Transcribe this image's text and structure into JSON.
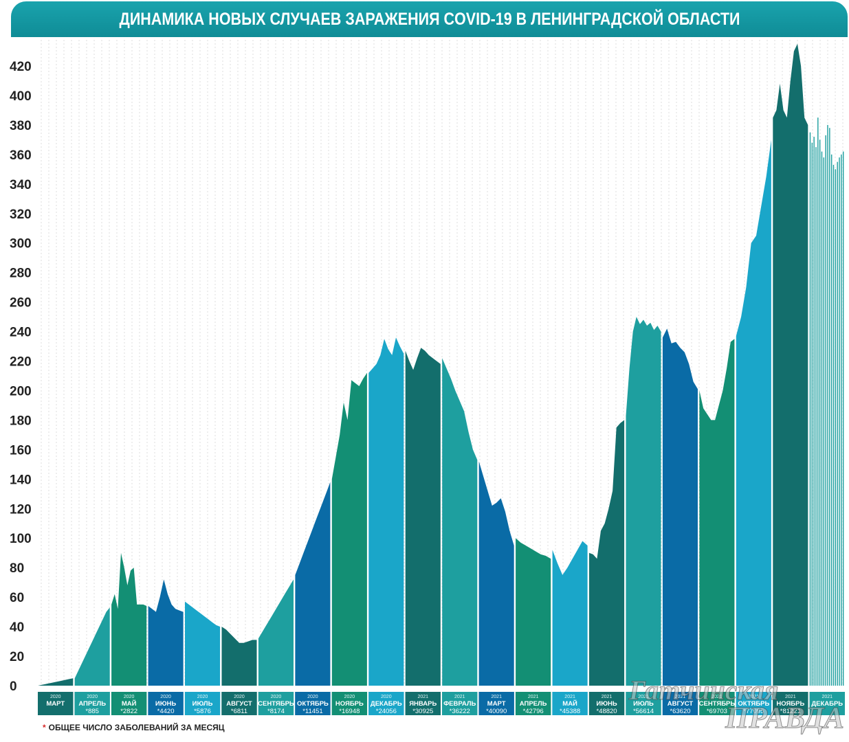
{
  "title": "ДИНАМИКА НОВЫХ СЛУЧАЕВ ЗАРАЖЕНИЯ COVID-19 В ЛЕНИНГРАДСКОЙ ОБЛАСТИ",
  "footnote": {
    "star": "*",
    "text": "ОБЩЕЕ ЧИСЛО ЗАБОЛЕВАНИЙ ЗА МЕСЯЦ"
  },
  "watermark": {
    "line1": "Гатчинская",
    "line2": "ПРАВДА"
  },
  "colors": {
    "dark_teal": "#136e6c",
    "medium_teal": "#1e9f9f",
    "green": "#138f74",
    "dark_blue": "#0a6ba6",
    "light_blue": "#1aa6c9",
    "banner": "#1aa3ad",
    "grid": "#c9c9c9"
  },
  "chart_data": {
    "type": "area",
    "title": "ДИНАМИКА НОВЫХ СЛУЧАЕВ ЗАРАЖЕНИЯ COVID-19 В ЛЕНИНГРАДСКОЙ ОБЛАСТИ",
    "xlabel": "",
    "ylabel": "",
    "ylim": [
      0,
      440
    ],
    "yticks": [
      0,
      20,
      40,
      60,
      80,
      100,
      120,
      140,
      160,
      180,
      200,
      220,
      240,
      260,
      280,
      300,
      320,
      340,
      360,
      380,
      400,
      420
    ],
    "grid": "vertical",
    "legend": "none",
    "months": [
      {
        "year": "2020",
        "name": "МАРТ",
        "total": "",
        "color": "#136e6c",
        "values": [
          0,
          0.5,
          1,
          1.5,
          2,
          2.5,
          3,
          3.5,
          4,
          4.5,
          5
        ]
      },
      {
        "year": "2020",
        "name": "АПРЕЛЬ",
        "total": "*885",
        "color": "#1e9f9f",
        "values": [
          5,
          10,
          15,
          20,
          25,
          30,
          35,
          40,
          45,
          50,
          53
        ]
      },
      {
        "year": "2020",
        "name": "МАЙ",
        "total": "*2822",
        "color": "#138f74",
        "values": [
          55,
          62,
          52,
          90,
          80,
          68,
          78,
          80,
          55,
          55,
          55,
          54
        ]
      },
      {
        "year": "2020",
        "name": "ИЮНЬ",
        "total": "*4420",
        "color": "#0a6ba6",
        "values": [
          54,
          52,
          50,
          60,
          72,
          62,
          55,
          52,
          51,
          50
        ]
      },
      {
        "year": "2020",
        "name": "ИЮЛЬ",
        "total": "*5876",
        "color": "#1aa6c9",
        "values": [
          57,
          55,
          53,
          51,
          49,
          47,
          45,
          43,
          41,
          40
        ]
      },
      {
        "year": "2020",
        "name": "АВГУСТ",
        "total": "*6811",
        "color": "#136e6c",
        "values": [
          40,
          38,
          35,
          32,
          29,
          29,
          30,
          31,
          31
        ]
      },
      {
        "year": "2020",
        "name": "СЕНТЯБРЬ",
        "total": "*8174",
        "color": "#1e9f9f",
        "values": [
          32,
          37,
          42,
          47,
          52,
          57,
          62,
          67,
          72
        ]
      },
      {
        "year": "2020",
        "name": "ОКТЯБРЬ",
        "total": "*11451",
        "color": "#0a6ba6",
        "values": [
          75,
          82,
          89,
          96,
          103,
          110,
          117,
          124,
          131,
          138
        ]
      },
      {
        "year": "2020",
        "name": "НОЯБРЬ",
        "total": "*16948",
        "color": "#138f74",
        "values": [
          140,
          155,
          170,
          192,
          180,
          207,
          205,
          203,
          208,
          212
        ]
      },
      {
        "year": "2020",
        "name": "ДЕКАБРЬ",
        "total": "*24056",
        "color": "#1aa6c9",
        "values": [
          212,
          215,
          218,
          224,
          235,
          228,
          224,
          236,
          230,
          225
        ]
      },
      {
        "year": "2021",
        "name": "ЯНВАРЬ",
        "total": "*30925",
        "color": "#136e6c",
        "values": [
          227,
          220,
          214,
          222,
          229,
          227,
          224,
          222,
          220,
          218
        ]
      },
      {
        "year": "2021",
        "name": "ФЕВРАЛЬ",
        "total": "*36222",
        "color": "#1e9f9f",
        "values": [
          222,
          215,
          208,
          200,
          193,
          186,
          172,
          160,
          153
        ]
      },
      {
        "year": "2021",
        "name": "МАРТ",
        "total": "*40090",
        "color": "#0a6ba6",
        "values": [
          152,
          142,
          132,
          122,
          124,
          127,
          118,
          105,
          95
        ]
      },
      {
        "year": "2021",
        "name": "АПРЕЛЬ",
        "total": "*42796",
        "color": "#138f74",
        "values": [
          100,
          97,
          95,
          93,
          91,
          89,
          88,
          86
        ]
      },
      {
        "year": "2021",
        "name": "МАЙ",
        "total": "*45388",
        "color": "#1aa6c9",
        "values": [
          92,
          83,
          75,
          80,
          86,
          92,
          98,
          95
        ]
      },
      {
        "year": "2021",
        "name": "ИЮНЬ",
        "total": "*48820",
        "color": "#136e6c",
        "values": [
          90,
          89,
          86,
          105,
          110,
          120,
          132,
          175,
          178,
          180
        ]
      },
      {
        "year": "2021",
        "name": "ИЮЛЬ",
        "total": "*56614",
        "color": "#1e9f9f",
        "values": [
          183,
          215,
          240,
          250,
          245,
          248,
          244,
          246,
          241,
          244,
          240
        ]
      },
      {
        "year": "2021",
        "name": "АВГУСТ",
        "total": "*63620",
        "color": "#0a6ba6",
        "values": [
          236,
          242,
          232,
          233,
          229,
          226,
          218,
          206,
          201
        ]
      },
      {
        "year": "2021",
        "name": "СЕНТЯБРЬ",
        "total": "*69703",
        "color": "#138f74",
        "values": [
          200,
          188,
          184,
          180,
          180,
          190,
          200,
          215,
          233,
          235
        ]
      },
      {
        "year": "2021",
        "name": "ОКТЯБРЬ",
        "total": "*77095",
        "color": "#1aa6c9",
        "values": [
          237,
          250,
          270,
          300,
          305,
          325,
          345,
          370
        ]
      },
      {
        "year": "2021",
        "name": "НОЯБРЬ",
        "total": "*81221",
        "color": "#136e6c",
        "values": [
          385,
          390,
          408,
          390,
          385,
          410,
          430,
          435,
          420,
          385,
          380
        ]
      },
      {
        "year": "2021",
        "name": "ДЕКАБРЬ",
        "total": "",
        "color": "#1e9f9f",
        "values": [
          375,
          368,
          372,
          365,
          385,
          370,
          362,
          358,
          373,
          380,
          378,
          360,
          353,
          350,
          355,
          358,
          360,
          362
        ]
      }
    ]
  }
}
